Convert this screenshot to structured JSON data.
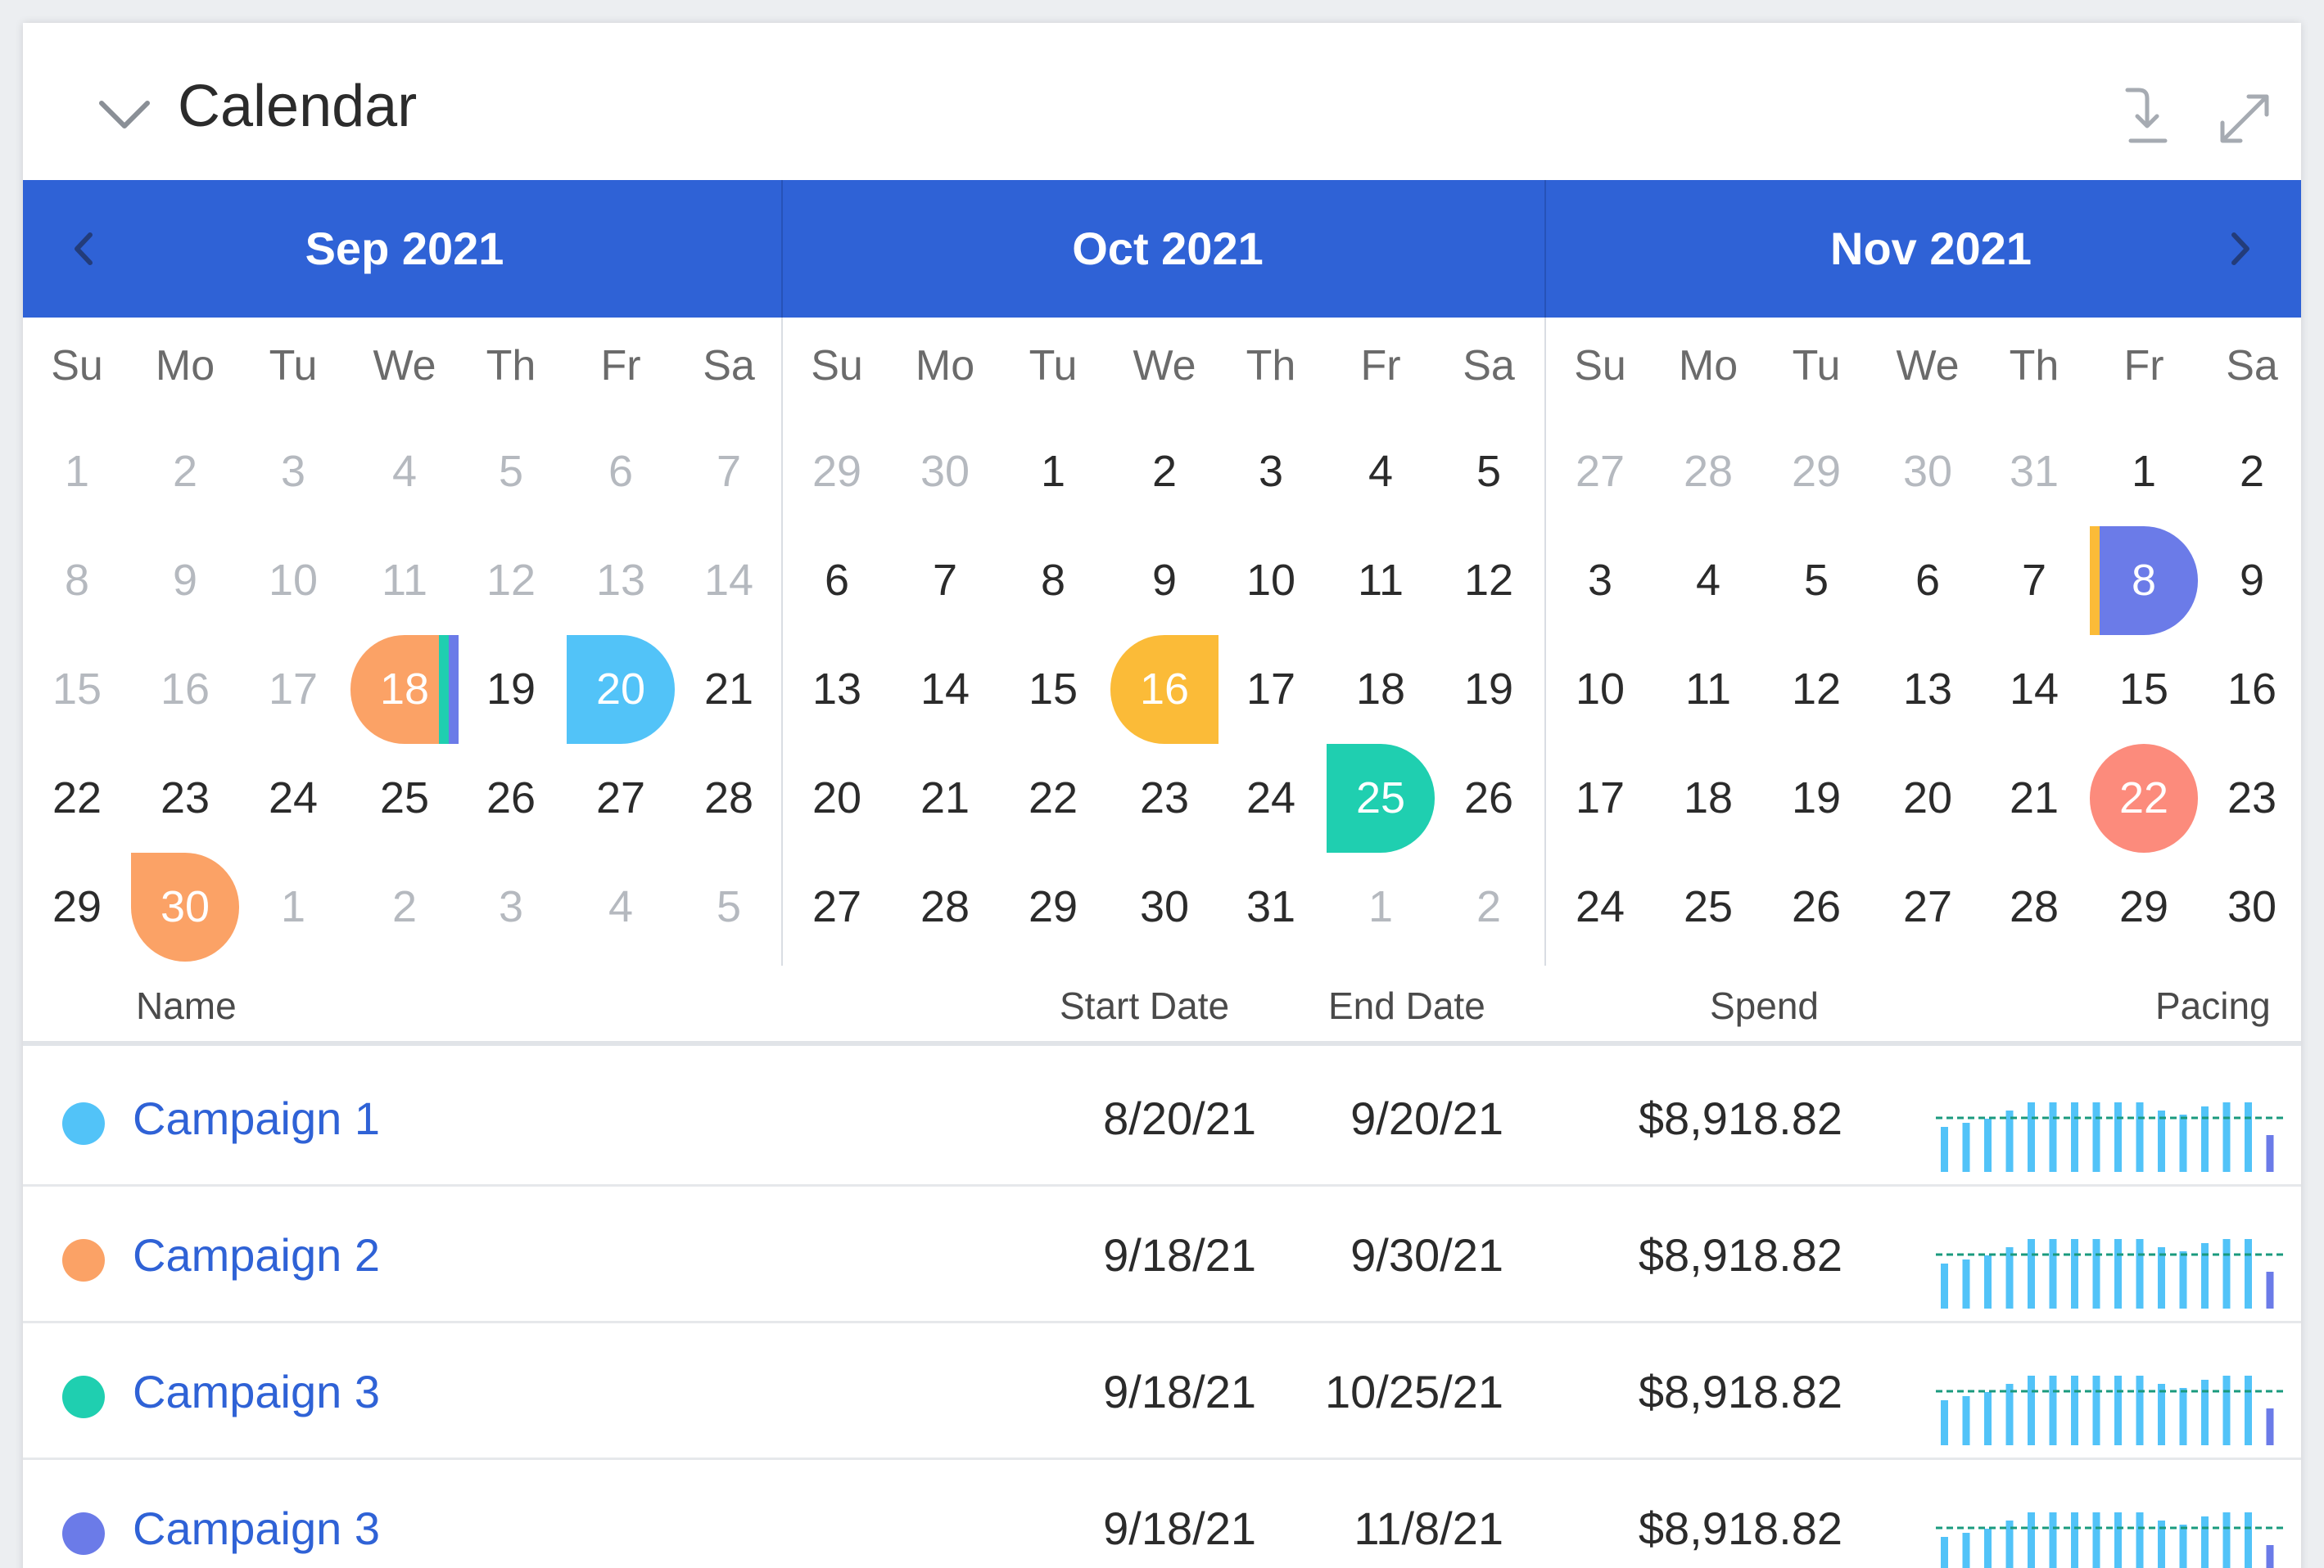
{
  "header": {
    "title": "Calendar",
    "icons": [
      "chevron-down-icon",
      "download-icon",
      "expand-icon"
    ]
  },
  "calendar": {
    "weekdays": [
      "Su",
      "Mo",
      "Tu",
      "We",
      "Th",
      "Fr",
      "Sa"
    ],
    "bar_color": "#2f62d6",
    "months": [
      {
        "label": "Sep 2021",
        "days": [
          {
            "d": "1",
            "m": true
          },
          {
            "d": "2",
            "m": true
          },
          {
            "d": "3",
            "m": true
          },
          {
            "d": "4",
            "m": true
          },
          {
            "d": "5",
            "m": true
          },
          {
            "d": "6",
            "m": true
          },
          {
            "d": "7",
            "m": true
          },
          {
            "d": "8",
            "m": true
          },
          {
            "d": "9",
            "m": true
          },
          {
            "d": "10",
            "m": true
          },
          {
            "d": "11",
            "m": true
          },
          {
            "d": "12",
            "m": true
          },
          {
            "d": "13",
            "m": true
          },
          {
            "d": "14",
            "m": true
          },
          {
            "d": "15",
            "m": true
          },
          {
            "d": "16",
            "m": true
          },
          {
            "d": "17",
            "m": true
          },
          {
            "d": "18",
            "hl": "#fba266",
            "shape": "left-cap",
            "stripes": [
              "#1fcfb0",
              "#6b7be8"
            ]
          },
          {
            "d": "19"
          },
          {
            "d": "20",
            "hl": "#52c3f8",
            "shape": "right-cap"
          },
          {
            "d": "21"
          },
          {
            "d": "22"
          },
          {
            "d": "23"
          },
          {
            "d": "24"
          },
          {
            "d": "25"
          },
          {
            "d": "26"
          },
          {
            "d": "27"
          },
          {
            "d": "28"
          },
          {
            "d": "29"
          },
          {
            "d": "30",
            "hl": "#fba266",
            "shape": "bottom-cap"
          },
          {
            "d": "1",
            "m": true
          },
          {
            "d": "2",
            "m": true
          },
          {
            "d": "3",
            "m": true
          },
          {
            "d": "4",
            "m": true
          },
          {
            "d": "5",
            "m": true
          }
        ]
      },
      {
        "label": "Oct 2021",
        "days": [
          {
            "d": "29",
            "m": true
          },
          {
            "d": "30",
            "m": true
          },
          {
            "d": "1"
          },
          {
            "d": "2"
          },
          {
            "d": "3"
          },
          {
            "d": "4"
          },
          {
            "d": "5"
          },
          {
            "d": "6"
          },
          {
            "d": "7"
          },
          {
            "d": "8"
          },
          {
            "d": "9"
          },
          {
            "d": "10"
          },
          {
            "d": "11"
          },
          {
            "d": "12"
          },
          {
            "d": "13"
          },
          {
            "d": "14"
          },
          {
            "d": "15"
          },
          {
            "d": "16",
            "hl": "#fbbb38",
            "shape": "left-cap"
          },
          {
            "d": "17"
          },
          {
            "d": "18"
          },
          {
            "d": "19"
          },
          {
            "d": "20"
          },
          {
            "d": "21"
          },
          {
            "d": "22"
          },
          {
            "d": "23"
          },
          {
            "d": "24"
          },
          {
            "d": "25",
            "hl": "#1fcfb0",
            "shape": "right-cap"
          },
          {
            "d": "26"
          },
          {
            "d": "27"
          },
          {
            "d": "28"
          },
          {
            "d": "29"
          },
          {
            "d": "30"
          },
          {
            "d": "31"
          },
          {
            "d": "1",
            "m": true
          },
          {
            "d": "2",
            "m": true
          }
        ]
      },
      {
        "label": "Nov 2021",
        "days": [
          {
            "d": "27",
            "m": true
          },
          {
            "d": "28",
            "m": true
          },
          {
            "d": "29",
            "m": true
          },
          {
            "d": "30",
            "m": true
          },
          {
            "d": "31",
            "m": true
          },
          {
            "d": "1"
          },
          {
            "d": "2"
          },
          {
            "d": "3"
          },
          {
            "d": "4"
          },
          {
            "d": "5"
          },
          {
            "d": "6"
          },
          {
            "d": "7"
          },
          {
            "d": "8",
            "hl": "#6b7be8",
            "shape": "right-cap",
            "lstripe": "#fbbb38"
          },
          {
            "d": "9"
          },
          {
            "d": "10"
          },
          {
            "d": "11"
          },
          {
            "d": "12"
          },
          {
            "d": "13"
          },
          {
            "d": "14"
          },
          {
            "d": "15"
          },
          {
            "d": "16"
          },
          {
            "d": "17"
          },
          {
            "d": "18"
          },
          {
            "d": "19"
          },
          {
            "d": "20"
          },
          {
            "d": "21"
          },
          {
            "d": "22",
            "hl": "#fc8b7c",
            "shape": "round"
          },
          {
            "d": "23"
          },
          {
            "d": "24"
          },
          {
            "d": "25"
          },
          {
            "d": "26"
          },
          {
            "d": "27"
          },
          {
            "d": "28"
          },
          {
            "d": "29"
          },
          {
            "d": "30"
          }
        ]
      }
    ]
  },
  "table": {
    "headers": {
      "name": "Name",
      "start": "Start Date",
      "end": "End Date",
      "spend": "Spend",
      "pacing": "Pacing"
    },
    "pacing_bar_color": "#52c3f8",
    "pacing_last_color": "#6b7be8",
    "pacing_line_color": "#1a9a7e",
    "rows": [
      {
        "name": "Campaign 1",
        "color": "#52c3f8",
        "start": "8/20/21",
        "end": "9/20/21",
        "spend": "$8,918.82",
        "pacing": [
          0.55,
          0.6,
          0.65,
          0.75,
          0.85,
          0.85,
          0.85,
          0.85,
          0.85,
          0.85,
          0.75,
          0.7,
          0.8,
          0.85,
          0.85,
          0.45
        ]
      },
      {
        "name": "Campaign 2",
        "color": "#fba266",
        "start": "9/18/21",
        "end": "9/30/21",
        "spend": "$8,918.82",
        "pacing": [
          0.55,
          0.6,
          0.65,
          0.75,
          0.85,
          0.85,
          0.85,
          0.85,
          0.85,
          0.85,
          0.75,
          0.7,
          0.8,
          0.85,
          0.85,
          0.45
        ]
      },
      {
        "name": "Campaign 3",
        "color": "#1fcfb0",
        "start": "9/18/21",
        "end": "10/25/21",
        "spend": "$8,918.82",
        "pacing": [
          0.55,
          0.6,
          0.65,
          0.75,
          0.85,
          0.85,
          0.85,
          0.85,
          0.85,
          0.85,
          0.75,
          0.7,
          0.8,
          0.85,
          0.85,
          0.45
        ]
      },
      {
        "name": "Campaign 3",
        "color": "#6b7be8",
        "start": "9/18/21",
        "end": "11/8/21",
        "spend": "$8,918.82",
        "pacing": [
          0.55,
          0.6,
          0.65,
          0.75,
          0.85,
          0.85,
          0.85,
          0.85,
          0.85,
          0.85,
          0.75,
          0.7,
          0.8,
          0.85,
          0.85,
          0.45
        ]
      }
    ]
  }
}
